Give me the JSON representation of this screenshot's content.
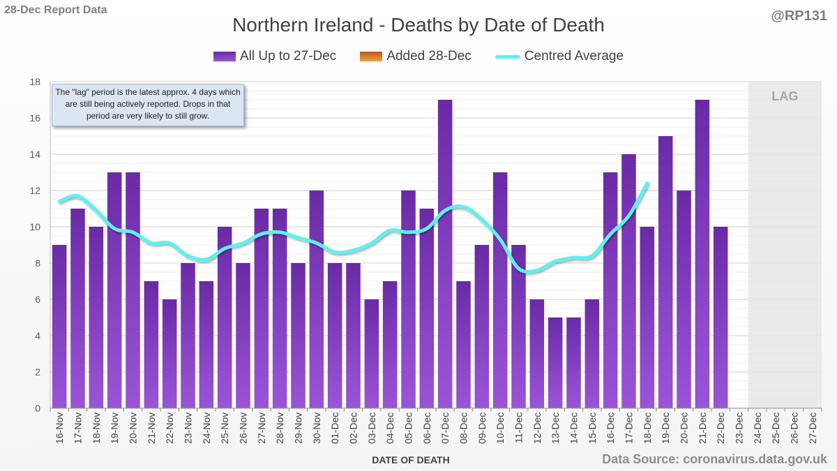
{
  "header": {
    "report_label": "28-Dec Report Data",
    "handle": "@RP131"
  },
  "note_text": "The \"lag\" period is the latest approx. 4 days which are still being actively reported. Drops in that period are very likely to still grow.",
  "source_text": "Data Source: coronavirus.data.gov.uk",
  "chart_data": {
    "type": "bar",
    "title": "Northern Ireland - Deaths by Date of Death",
    "xlabel": "DATE OF DEATH",
    "ylabel": "",
    "ylim": [
      0,
      18
    ],
    "yticks": [
      0,
      2,
      4,
      6,
      8,
      10,
      12,
      14,
      16,
      18
    ],
    "grid": true,
    "legend_position": "top",
    "lag_label": "LAG",
    "lag_categories": [
      "24-Dec",
      "25-Dec",
      "26-Dec",
      "27-Dec"
    ],
    "categories": [
      "16-Nov",
      "17-Nov",
      "18-Nov",
      "19-Nov",
      "20-Nov",
      "21-Nov",
      "22-Nov",
      "23-Nov",
      "24-Nov",
      "25-Nov",
      "26-Nov",
      "27-Nov",
      "28-Nov",
      "29-Nov",
      "30-Nov",
      "01-Dec",
      "02-Dec",
      "03-Dec",
      "04-Dec",
      "05-Dec",
      "06-Dec",
      "07-Dec",
      "08-Dec",
      "09-Dec",
      "10-Dec",
      "11-Dec",
      "12-Dec",
      "13-Dec",
      "14-Dec",
      "15-Dec",
      "16-Dec",
      "17-Dec",
      "18-Dec",
      "19-Dec",
      "20-Dec",
      "21-Dec",
      "22-Dec",
      "23-Dec",
      "24-Dec",
      "25-Dec",
      "26-Dec",
      "27-Dec"
    ],
    "series": [
      {
        "name": "All Up to 27-Dec",
        "kind": "bar",
        "color": "#7a35b8",
        "values": [
          9,
          11,
          10,
          13,
          13,
          7,
          6,
          8,
          7,
          10,
          8,
          11,
          11,
          8,
          12,
          8,
          8,
          6,
          7,
          12,
          11,
          17,
          7,
          9,
          13,
          9,
          6,
          5,
          5,
          6,
          13,
          14,
          10,
          15,
          12,
          17,
          10,
          0,
          0,
          0,
          0,
          0
        ]
      },
      {
        "name": "Added 28-Dec",
        "kind": "bar",
        "color": "#d9731c",
        "values": [
          0,
          0,
          0,
          0,
          0,
          0,
          0,
          0,
          0,
          0,
          0,
          0,
          0,
          0,
          0,
          0,
          0,
          0,
          0,
          0,
          0,
          0,
          0,
          0,
          0,
          0,
          0,
          0,
          0,
          0,
          0,
          0,
          0,
          0,
          0,
          0,
          0,
          0,
          0,
          0,
          0,
          0
        ]
      },
      {
        "name": "Centred Average",
        "kind": "line",
        "color": "#5ff0f0",
        "values": [
          11.4,
          11.7,
          10.9,
          9.9,
          9.7,
          9.1,
          9.1,
          8.4,
          8.2,
          8.8,
          9.1,
          9.6,
          9.7,
          9.4,
          9.1,
          8.6,
          8.7,
          9.1,
          9.8,
          9.7,
          9.9,
          10.9,
          11.1,
          10.4,
          9.3,
          7.7,
          7.6,
          8.1,
          8.3,
          8.4,
          9.6,
          10.6,
          12.4,
          null,
          null,
          null,
          null,
          null,
          null,
          null,
          null,
          null
        ]
      }
    ]
  }
}
